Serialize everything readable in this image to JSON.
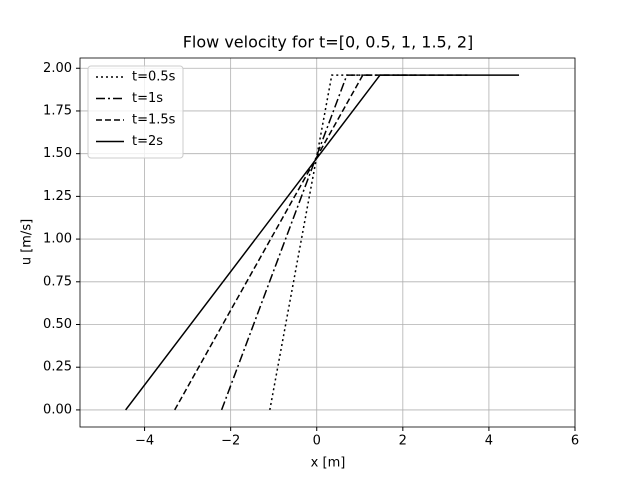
{
  "chart_data": {
    "type": "line",
    "title": "Flow velocity for t=[0, 0.5, 1, 1.5, 2]",
    "xlabel": "x [m]",
    "ylabel": "u [m/s]",
    "xlim": [
      -5.5,
      6
    ],
    "ylim": [
      -0.1,
      2.06
    ],
    "xticks": [
      {
        "value": -4,
        "label": "−4"
      },
      {
        "value": -2,
        "label": "−2"
      },
      0,
      2,
      4,
      6
    ],
    "yticks": [
      {
        "value": 0,
        "label": "0.00"
      },
      {
        "value": 0.25,
        "label": "0.25"
      },
      {
        "value": 0.5,
        "label": "0.50"
      },
      {
        "value": 0.75,
        "label": "0.75"
      },
      {
        "value": 1,
        "label": "1.00"
      },
      {
        "value": 1.25,
        "label": "1.25"
      },
      {
        "value": 1.5,
        "label": "1.50"
      },
      {
        "value": 1.75,
        "label": "1.75"
      },
      {
        "value": 2,
        "label": "2.00"
      }
    ],
    "grid": true,
    "legend": "upper left",
    "series": [
      {
        "name": "t=0.5s",
        "color": "#000000",
        "linestyle": "dotted",
        "x": [
          -1.09,
          0.35,
          1.2
        ],
        "values": [
          0,
          1.96,
          1.96
        ]
      },
      {
        "name": "t=1s",
        "color": "#000000",
        "linestyle": "dashdot",
        "x": [
          -2.21,
          0.7,
          2.3
        ],
        "values": [
          0,
          1.96,
          1.96
        ]
      },
      {
        "name": "t=1.5s",
        "color": "#000000",
        "linestyle": "dashed",
        "x": [
          -3.3,
          1.07,
          3.5
        ],
        "values": [
          0,
          1.96,
          1.96
        ]
      },
      {
        "name": "t=2s",
        "color": "#000000",
        "linestyle": "solid",
        "x": [
          -4.44,
          1.47,
          4.7
        ],
        "values": [
          0,
          1.96,
          1.96
        ]
      }
    ]
  }
}
